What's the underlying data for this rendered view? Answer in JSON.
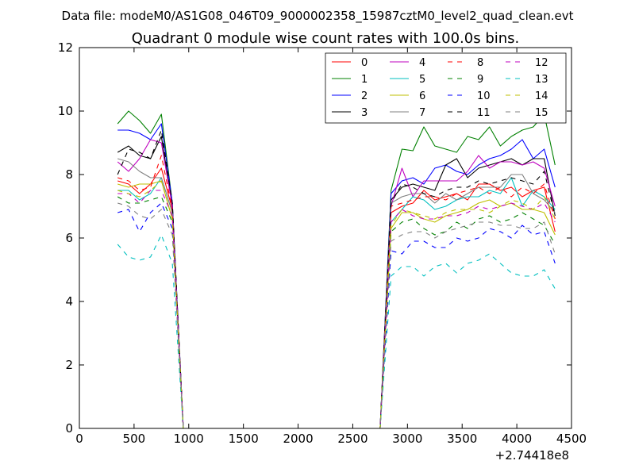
{
  "figure": {
    "supertitle": "Data file: modeM0/AS1G08_046T09_9000002358_15987cztM0_level2_quad_clean.evt"
  },
  "chart_data": {
    "type": "line",
    "title": "Quadrant 0 module wise count rates with 100.0s bins.",
    "xlabel": "",
    "ylabel": "",
    "x_offset_label": "+2.74418e8",
    "xlim": [
      0,
      4500
    ],
    "ylim": [
      0,
      12
    ],
    "x_ticks": [
      0,
      500,
      1000,
      1500,
      2000,
      2500,
      3000,
      3500,
      4000,
      4500
    ],
    "y_ticks": [
      0,
      2,
      4,
      6,
      8,
      10,
      12
    ],
    "grid": false,
    "legend_position": "top-right",
    "x": [
      350,
      450,
      550,
      650,
      750,
      850,
      950,
      1050,
      1150,
      1250,
      1350,
      1450,
      1550,
      1650,
      1750,
      1850,
      1950,
      2050,
      2150,
      2250,
      2350,
      2450,
      2550,
      2650,
      2750,
      2850,
      2950,
      3050,
      3150,
      3250,
      3350,
      3450,
      3550,
      3650,
      3750,
      3850,
      3950,
      4050,
      4150,
      4250,
      4350
    ],
    "series": [
      {
        "name": "0",
        "color": "#ff0000",
        "dash": "solid",
        "values": [
          7.8,
          7.7,
          7.4,
          7.7,
          8.2,
          6.9,
          0,
          0,
          0,
          0,
          0,
          0,
          0,
          0,
          0,
          0,
          0,
          0,
          0,
          0,
          0,
          0,
          0,
          0,
          0,
          6.8,
          7.0,
          7.1,
          7.5,
          7.2,
          7.3,
          7.4,
          7.2,
          7.7,
          7.7,
          7.5,
          7.6,
          7.3,
          7.5,
          7.6,
          6.2
        ]
      },
      {
        "name": "1",
        "color": "#008000",
        "dash": "solid",
        "values": [
          9.6,
          10.0,
          9.7,
          9.3,
          9.9,
          7.1,
          0,
          0,
          0,
          0,
          0,
          0,
          0,
          0,
          0,
          0,
          0,
          0,
          0,
          0,
          0,
          0,
          0,
          0,
          0,
          7.5,
          8.8,
          8.75,
          9.5,
          8.9,
          8.8,
          8.7,
          9.2,
          9.1,
          9.5,
          8.9,
          9.2,
          9.4,
          9.5,
          9.9,
          8.3
        ]
      },
      {
        "name": "2",
        "color": "#0000ff",
        "dash": "solid",
        "values": [
          9.4,
          9.4,
          9.3,
          9.1,
          9.6,
          7.1,
          0,
          0,
          0,
          0,
          0,
          0,
          0,
          0,
          0,
          0,
          0,
          0,
          0,
          0,
          0,
          0,
          0,
          0,
          0,
          7.4,
          7.8,
          7.9,
          7.7,
          8.2,
          8.3,
          8.1,
          8.0,
          8.3,
          8.5,
          8.6,
          8.8,
          9.1,
          8.5,
          8.8,
          7.6
        ]
      },
      {
        "name": "3",
        "color": "#000000",
        "dash": "solid",
        "values": [
          8.7,
          8.9,
          8.6,
          8.5,
          9.2,
          7.0,
          0,
          0,
          0,
          0,
          0,
          0,
          0,
          0,
          0,
          0,
          0,
          0,
          0,
          0,
          0,
          0,
          0,
          0,
          0,
          7.2,
          7.6,
          7.7,
          7.6,
          7.5,
          8.3,
          8.5,
          7.9,
          8.2,
          8.3,
          8.4,
          8.5,
          8.3,
          8.5,
          8.5,
          6.7
        ]
      },
      {
        "name": "4",
        "color": "#bf00bf",
        "dash": "solid",
        "values": [
          8.4,
          8.1,
          8.5,
          9.1,
          9.0,
          7.0,
          0,
          0,
          0,
          0,
          0,
          0,
          0,
          0,
          0,
          0,
          0,
          0,
          0,
          0,
          0,
          0,
          0,
          0,
          0,
          7.0,
          8.2,
          7.3,
          7.8,
          7.8,
          7.8,
          7.8,
          8.1,
          8.6,
          8.2,
          8.4,
          8.4,
          8.3,
          8.4,
          8.2,
          7.0
        ]
      },
      {
        "name": "5",
        "color": "#00bfbf",
        "dash": "solid",
        "values": [
          7.5,
          7.5,
          7.2,
          7.4,
          7.9,
          6.8,
          0,
          0,
          0,
          0,
          0,
          0,
          0,
          0,
          0,
          0,
          0,
          0,
          0,
          0,
          0,
          0,
          0,
          0,
          0,
          6.5,
          6.9,
          7.3,
          7.2,
          6.9,
          7.0,
          7.2,
          7.3,
          7.3,
          7.5,
          7.4,
          7.9,
          7.0,
          7.5,
          7.3,
          6.9
        ]
      },
      {
        "name": "6",
        "color": "#bfbf00",
        "dash": "solid",
        "values": [
          7.7,
          7.6,
          7.7,
          7.7,
          7.8,
          6.6,
          0,
          0,
          0,
          0,
          0,
          0,
          0,
          0,
          0,
          0,
          0,
          0,
          0,
          0,
          0,
          0,
          0,
          0,
          0,
          6.3,
          6.8,
          6.8,
          6.6,
          6.5,
          6.7,
          6.8,
          6.9,
          7.1,
          7.2,
          7.0,
          7.1,
          6.9,
          6.9,
          6.8,
          6.1
        ]
      },
      {
        "name": "7",
        "color": "#808080",
        "dash": "solid",
        "values": [
          8.5,
          8.4,
          8.1,
          7.9,
          7.9,
          6.8,
          0,
          0,
          0,
          0,
          0,
          0,
          0,
          0,
          0,
          0,
          0,
          0,
          0,
          0,
          0,
          0,
          0,
          0,
          0,
          7.1,
          7.3,
          7.4,
          7.4,
          7.1,
          7.4,
          7.2,
          7.4,
          7.6,
          7.6,
          7.6,
          8.0,
          8.0,
          7.4,
          7.2,
          6.8
        ]
      },
      {
        "name": "8",
        "color": "#ff0000",
        "dash": "dashed",
        "values": [
          7.9,
          7.8,
          7.5,
          7.6,
          8.6,
          6.9,
          0,
          0,
          0,
          0,
          0,
          0,
          0,
          0,
          0,
          0,
          0,
          0,
          0,
          0,
          0,
          0,
          0,
          0,
          0,
          7.0,
          7.1,
          7.2,
          7.3,
          7.3,
          7.2,
          7.4,
          7.5,
          7.6,
          7.4,
          7.6,
          7.3,
          7.6,
          7.4,
          7.7,
          6.6
        ]
      },
      {
        "name": "9",
        "color": "#008000",
        "dash": "dashed",
        "values": [
          7.3,
          7.1,
          7.1,
          7.2,
          7.3,
          6.5,
          0,
          0,
          0,
          0,
          0,
          0,
          0,
          0,
          0,
          0,
          0,
          0,
          0,
          0,
          0,
          0,
          0,
          0,
          0,
          6.2,
          6.5,
          6.6,
          6.3,
          6.1,
          6.2,
          6.5,
          6.3,
          6.6,
          6.7,
          6.5,
          6.6,
          6.8,
          6.6,
          6.4,
          5.8
        ]
      },
      {
        "name": "10",
        "color": "#0000ff",
        "dash": "dashed",
        "values": [
          6.8,
          6.9,
          6.2,
          6.8,
          7.1,
          6.3,
          0,
          0,
          0,
          0,
          0,
          0,
          0,
          0,
          0,
          0,
          0,
          0,
          0,
          0,
          0,
          0,
          0,
          0,
          0,
          5.6,
          5.5,
          5.9,
          5.9,
          5.7,
          5.7,
          6.0,
          5.9,
          6.0,
          6.3,
          6.2,
          6.0,
          6.4,
          6.1,
          6.2,
          5.2
        ]
      },
      {
        "name": "11",
        "color": "#000000",
        "dash": "dashed",
        "values": [
          8.0,
          8.8,
          8.7,
          8.5,
          9.4,
          7.1,
          0,
          0,
          0,
          0,
          0,
          0,
          0,
          0,
          0,
          0,
          0,
          0,
          0,
          0,
          0,
          0,
          0,
          0,
          0,
          7.1,
          7.7,
          7.6,
          7.4,
          7.3,
          7.5,
          7.6,
          7.6,
          7.8,
          7.7,
          7.8,
          7.9,
          7.8,
          7.7,
          8.1,
          6.7
        ]
      },
      {
        "name": "12",
        "color": "#bf00bf",
        "dash": "dashed",
        "values": [
          7.4,
          7.4,
          7.1,
          7.5,
          7.5,
          6.7,
          0,
          0,
          0,
          0,
          0,
          0,
          0,
          0,
          0,
          0,
          0,
          0,
          0,
          0,
          0,
          0,
          0,
          0,
          0,
          6.5,
          6.9,
          6.7,
          6.6,
          6.6,
          6.7,
          6.7,
          6.8,
          7.0,
          6.9,
          7.0,
          7.1,
          7.0,
          6.9,
          7.1,
          6.5
        ]
      },
      {
        "name": "13",
        "color": "#00bfbf",
        "dash": "dashed",
        "values": [
          5.8,
          5.4,
          5.3,
          5.4,
          6.1,
          5.2,
          0,
          0,
          0,
          0,
          0,
          0,
          0,
          0,
          0,
          0,
          0,
          0,
          0,
          0,
          0,
          0,
          0,
          0,
          0,
          4.8,
          5.1,
          5.1,
          4.8,
          5.1,
          5.2,
          4.9,
          5.2,
          5.3,
          5.5,
          5.2,
          4.9,
          4.8,
          4.8,
          5.0,
          4.4
        ]
      },
      {
        "name": "14",
        "color": "#bfbf00",
        "dash": "dashed",
        "values": [
          7.5,
          7.4,
          7.3,
          7.5,
          7.8,
          6.6,
          0,
          0,
          0,
          0,
          0,
          0,
          0,
          0,
          0,
          0,
          0,
          0,
          0,
          0,
          0,
          0,
          0,
          0,
          0,
          6.4,
          6.9,
          6.8,
          6.7,
          6.6,
          6.8,
          6.9,
          6.9,
          6.9,
          6.8,
          7.0,
          7.2,
          7.1,
          6.9,
          7.3,
          6.6
        ]
      },
      {
        "name": "15",
        "color": "#808080",
        "dash": "dashed",
        "values": [
          7.1,
          7.0,
          6.7,
          6.6,
          6.9,
          6.1,
          0,
          0,
          0,
          0,
          0,
          0,
          0,
          0,
          0,
          0,
          0,
          0,
          0,
          0,
          0,
          0,
          0,
          0,
          0,
          5.9,
          6.1,
          6.2,
          6.2,
          6.0,
          6.2,
          6.3,
          6.4,
          6.5,
          6.5,
          6.4,
          6.4,
          6.3,
          6.3,
          6.5,
          5.5
        ]
      }
    ]
  }
}
